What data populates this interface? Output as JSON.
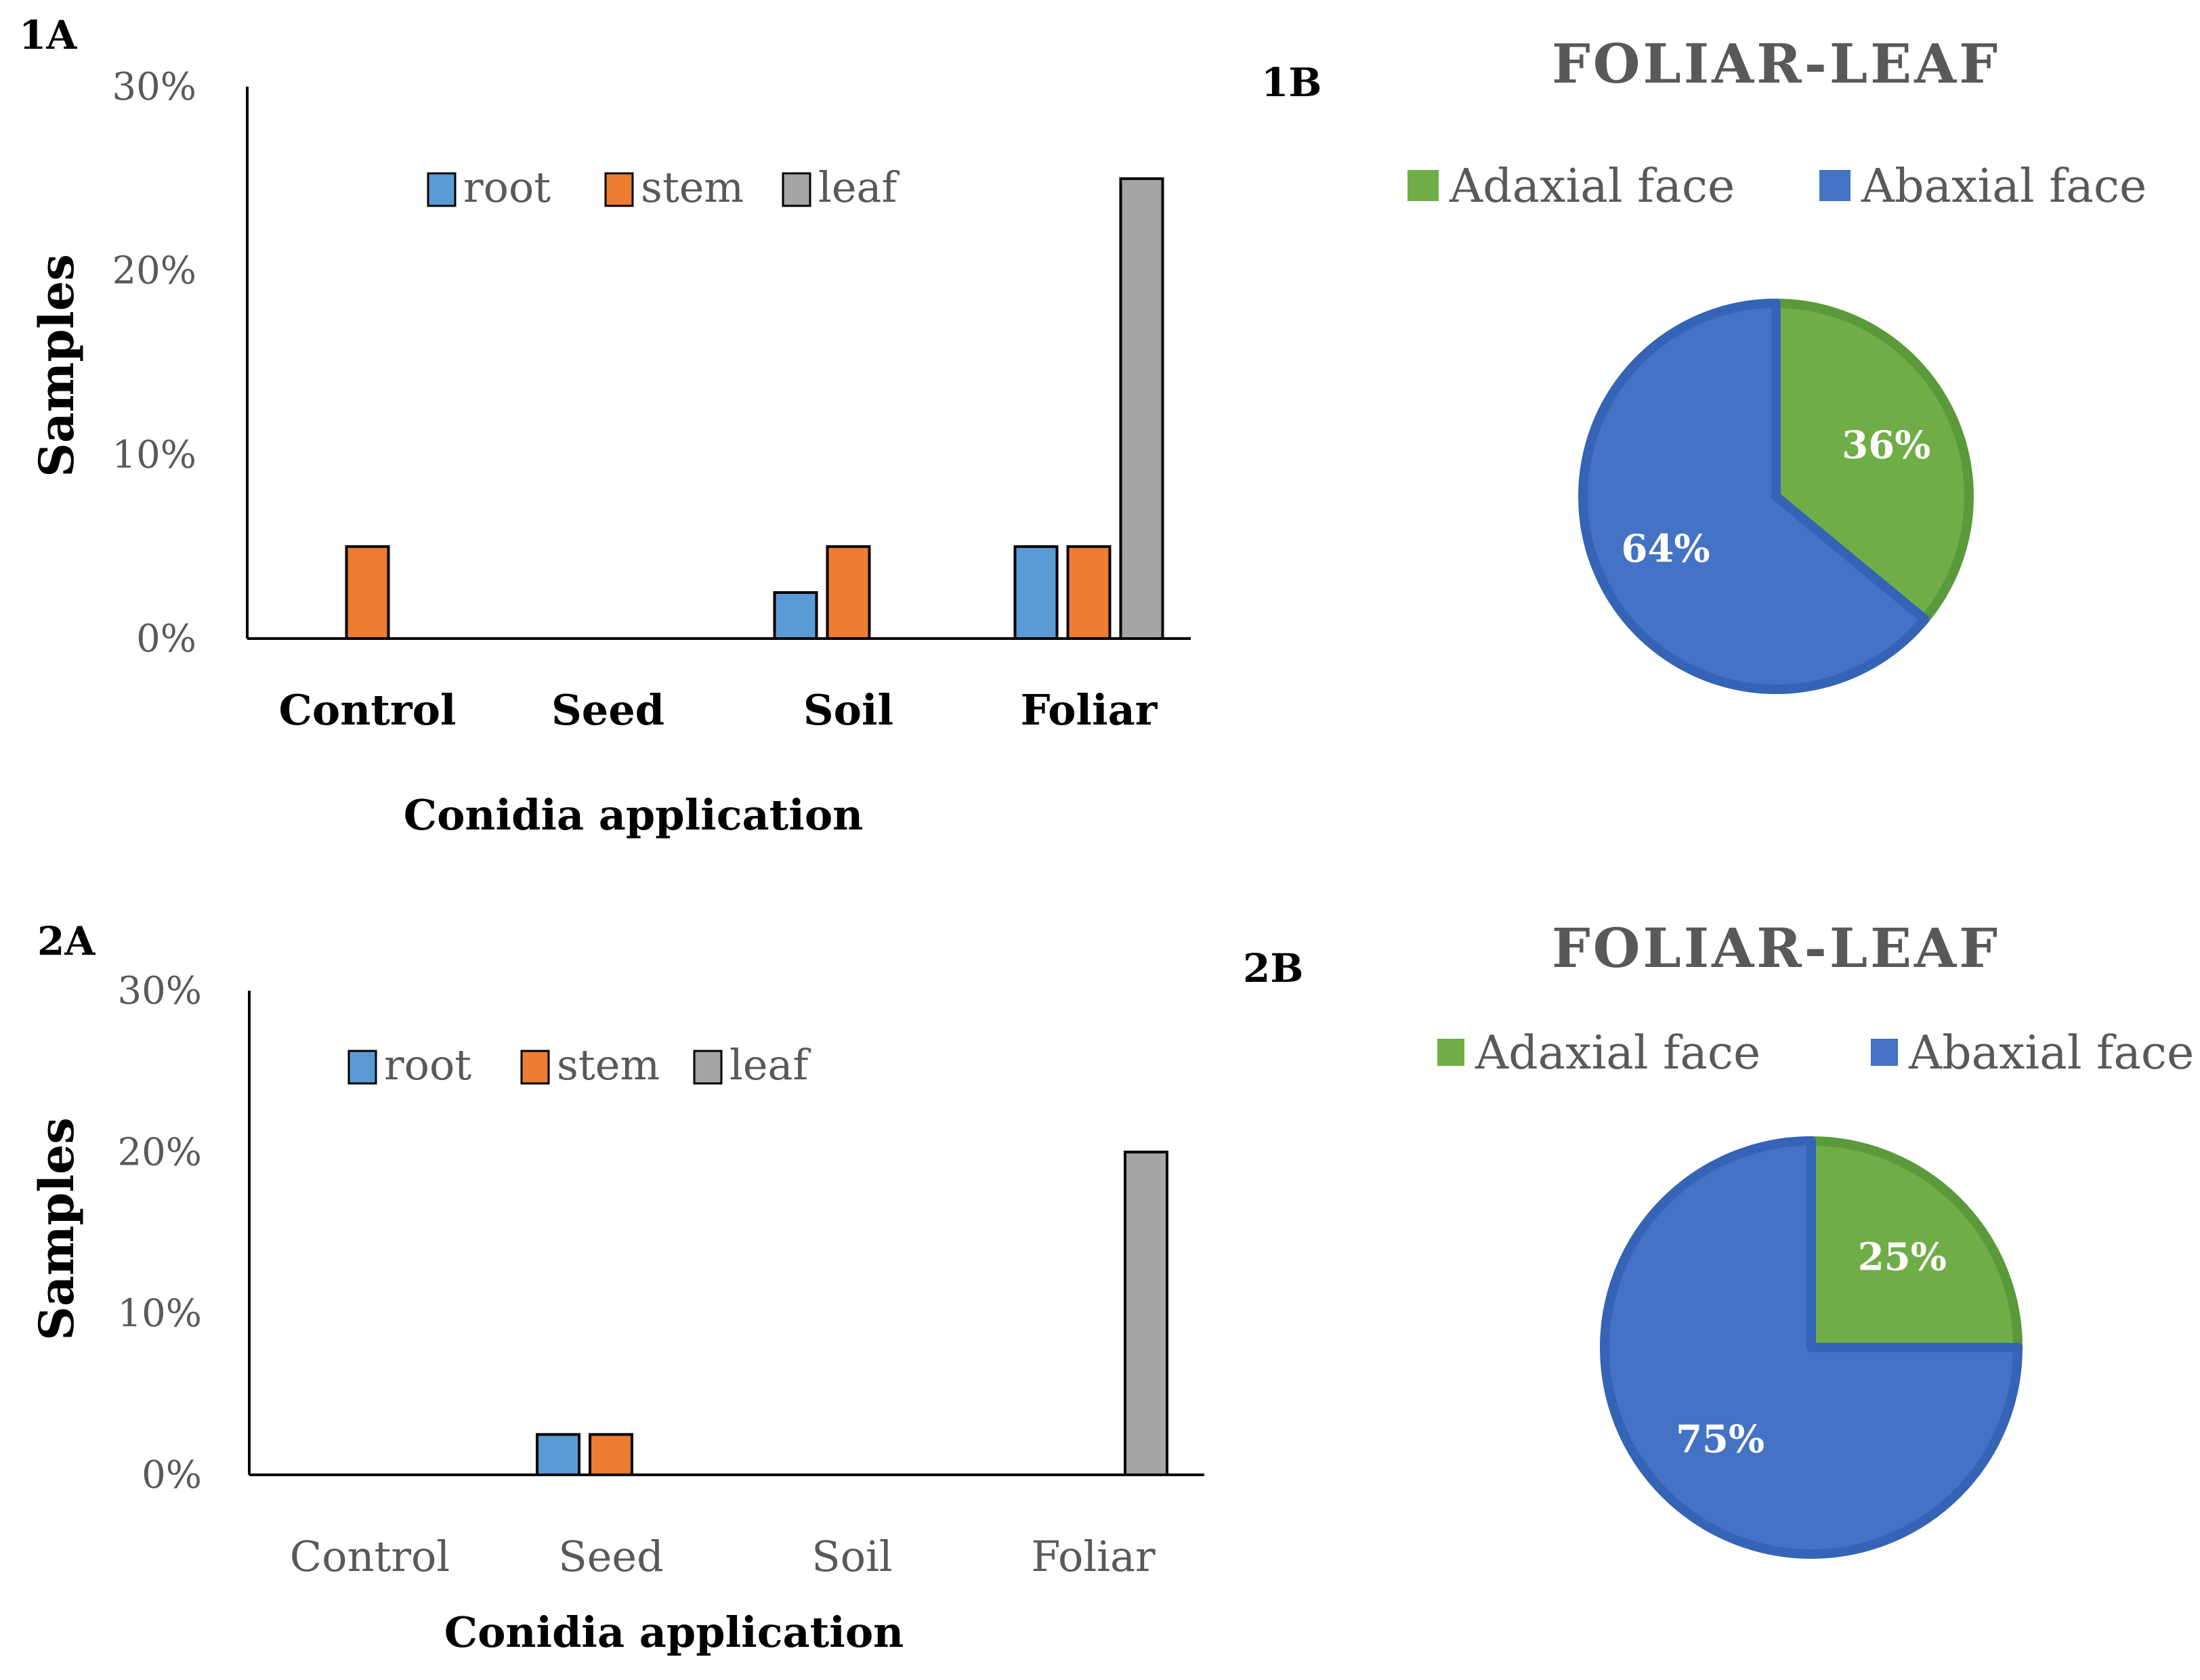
{
  "chart_data": [
    {
      "panel": "1A",
      "type": "bar",
      "categories": [
        "Control",
        "Seed",
        "Soil",
        "Foliar"
      ],
      "category_style": "bold",
      "series": [
        {
          "name": "root",
          "color": "#5B9BD5",
          "values": [
            0,
            0,
            2.5,
            5
          ]
        },
        {
          "name": "stem",
          "color": "#ED7D31",
          "values": [
            5,
            0,
            5,
            5
          ]
        },
        {
          "name": "leaf",
          "color": "#A5A5A5",
          "values": [
            0,
            0,
            0,
            25
          ]
        }
      ],
      "xlabel": "Conidia application",
      "ylabel": "Samples",
      "ylim": [
        0,
        30
      ],
      "yticks": [
        "0%",
        "10%",
        "20%",
        "30%"
      ],
      "legend_position": "top"
    },
    {
      "panel": "1B",
      "type": "pie",
      "title": "FOLIAR-LEAF",
      "slices": [
        {
          "label": "Adaxial face",
          "value": 36,
          "display": "36%",
          "color": "#70AD47"
        },
        {
          "label": "Abaxial face",
          "value": 64,
          "display": "64%",
          "color": "#4472C4"
        }
      ],
      "legend_position": "top"
    },
    {
      "panel": "2A",
      "type": "bar",
      "categories": [
        "Control",
        "Seed",
        "Soil",
        "Foliar"
      ],
      "category_style": "gray",
      "series": [
        {
          "name": "root",
          "color": "#5B9BD5",
          "values": [
            0,
            2.5,
            0,
            0
          ]
        },
        {
          "name": "stem",
          "color": "#ED7D31",
          "values": [
            0,
            2.5,
            0,
            0
          ]
        },
        {
          "name": "leaf",
          "color": "#A5A5A5",
          "values": [
            0,
            0,
            0,
            20
          ]
        }
      ],
      "xlabel": "Conidia application",
      "ylabel": "Samples",
      "ylim": [
        0,
        30
      ],
      "yticks": [
        "0%",
        "10%",
        "20%",
        "30%"
      ],
      "legend_position": "top"
    },
    {
      "panel": "2B",
      "type": "pie",
      "title": "FOLIAR-LEAF",
      "slices": [
        {
          "label": "Adaxial face",
          "value": 25,
          "display": "25%",
          "color": "#70AD47"
        },
        {
          "label": "Abaxial face",
          "value": 75,
          "display": "75%",
          "color": "#4472C4"
        }
      ],
      "legend_position": "top"
    }
  ]
}
